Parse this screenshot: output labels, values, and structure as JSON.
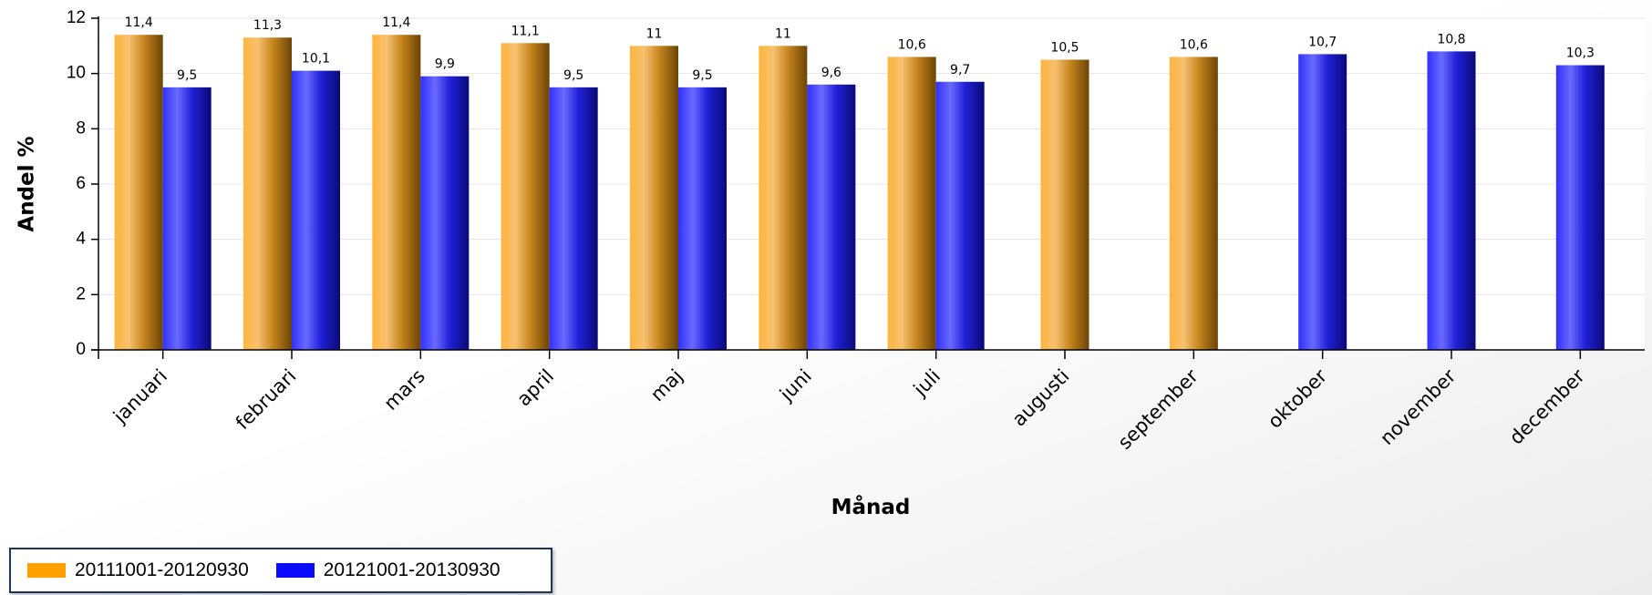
{
  "chart_data": {
    "type": "bar",
    "title": "",
    "xlabel": "Månad",
    "ylabel": "Andel %",
    "ylim": [
      0,
      12
    ],
    "yticks": [
      0,
      2,
      4,
      6,
      8,
      10,
      12
    ],
    "grid": true,
    "legend_position": "bottom-left",
    "categories": [
      "januari",
      "februari",
      "mars",
      "april",
      "maj",
      "juni",
      "juli",
      "augusti",
      "september",
      "oktober",
      "november",
      "december"
    ],
    "series": [
      {
        "name": "20111001-20120930",
        "color": "#ff9f00",
        "values": [
          11.4,
          11.3,
          11.4,
          11.1,
          11,
          11,
          10.6,
          10.5,
          10.6,
          null,
          null,
          null
        ],
        "labels": [
          "11,4",
          "11,3",
          "11,4",
          "11,1",
          "11",
          "11",
          "10,6",
          "10,5",
          "10,6",
          "",
          "",
          ""
        ]
      },
      {
        "name": "20121001-20130930",
        "color": "#0a0aff",
        "values": [
          9.5,
          10.1,
          9.9,
          9.5,
          9.5,
          9.6,
          9.7,
          null,
          null,
          10.7,
          10.8,
          10.3
        ],
        "labels": [
          "9,5",
          "10,1",
          "9,9",
          "9,5",
          "9,5",
          "9,6",
          "9,7",
          "",
          "",
          "10,7",
          "10,8",
          "10,3"
        ]
      }
    ]
  }
}
